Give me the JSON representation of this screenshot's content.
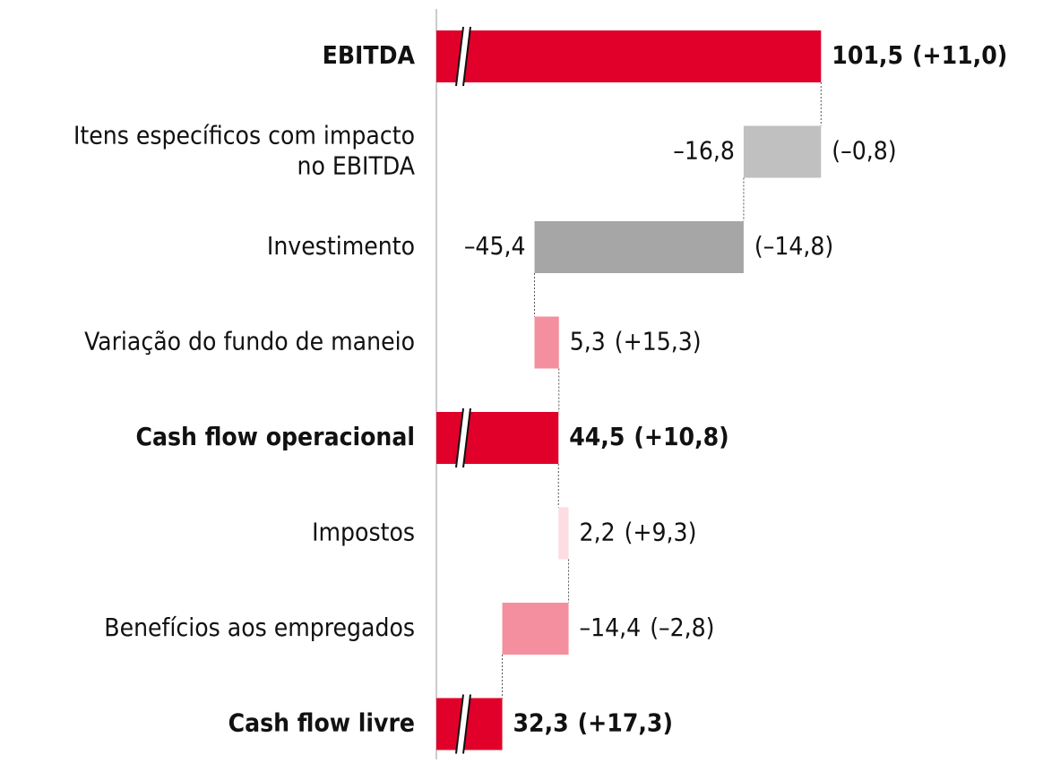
{
  "chart_data": {
    "type": "waterfall",
    "categories": [
      "EBITDA",
      "Itens específicos com impacto\nno EBITDA",
      "Investimento",
      "Variação do fundo de maneio",
      "Cash flow operacional",
      "Impostos",
      "Benefícios aos empregados",
      "Cash flow livre"
    ],
    "values": [
      101.5,
      -16.8,
      -45.4,
      5.3,
      44.5,
      2.2,
      -14.4,
      32.3
    ],
    "value_labels": [
      "101,5",
      "–16,8",
      "–45,4",
      "5,3",
      "44,5",
      "2,2",
      "–14,4",
      "32,3"
    ],
    "changes": [
      11.0,
      -0.8,
      -14.8,
      15.3,
      10.8,
      9.3,
      -2.8,
      17.3
    ],
    "change_labels": [
      "(+11,0)",
      "(–0,8)",
      "(–14,8)",
      "(+15,3)",
      "(+10,8)",
      "(+9,3)",
      "(–2,8)",
      "(+17,3)"
    ],
    "totals": [
      true,
      false,
      false,
      false,
      true,
      false,
      false,
      true
    ],
    "colors": [
      "#e0002a",
      "#c0c0c0",
      "#a6a6a6",
      "#f48fa0",
      "#e0002a",
      "#fddde2",
      "#f48fa0",
      "#e0002a"
    ],
    "xlim": [
      18,
      110
    ],
    "axis_break": true
  }
}
